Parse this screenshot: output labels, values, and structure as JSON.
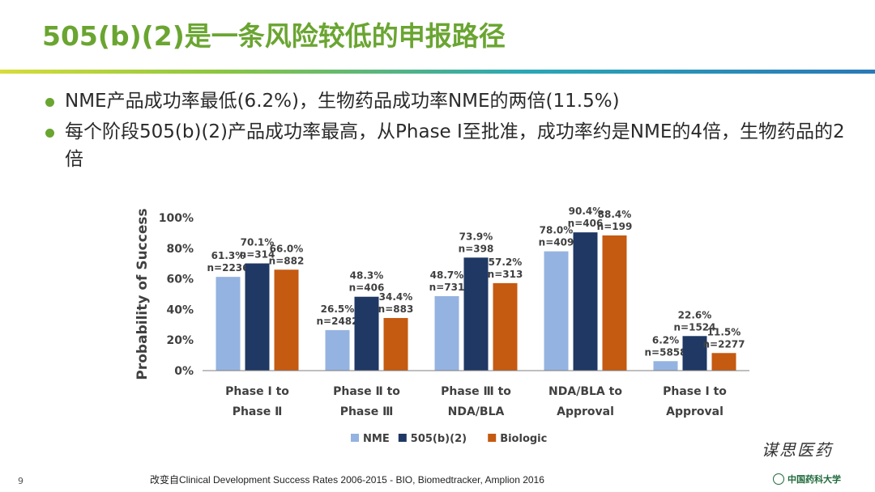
{
  "slide": {
    "title": "505(b)(2)是一条风险较低的申报路径",
    "bullets": [
      "NME产品成功率最低(6.2%)，生物药品成功率NME的两倍(11.5%)",
      "每个阶段505(b)(2)产品成功率最高，从Phase Ⅰ至批准，成功率约是NME的4倍，生物药品的2倍"
    ],
    "page_number": "9",
    "source": "改变自Clinical Development Success Rates 2006-2015 - BIO, Biomedtracker, Amplion 2016",
    "logo_text": "谋思医药",
    "university": "中国药科大学"
  },
  "colors": {
    "title": "#6aa531",
    "nme": "#95b3e0",
    "b2": "#1f3864",
    "biologic": "#c55a11"
  },
  "chart_data": {
    "type": "bar",
    "ylabel": "Probability of Success",
    "ylim": [
      0,
      100
    ],
    "yticks": [
      0,
      20,
      40,
      60,
      80,
      100
    ],
    "ytick_labels": [
      "0%",
      "20%",
      "40%",
      "60%",
      "80%",
      "100%"
    ],
    "categories": [
      [
        "Phase Ⅰ to",
        "Phase Ⅱ"
      ],
      [
        "Phase Ⅱ to",
        "Phase Ⅲ"
      ],
      [
        "Phase Ⅲ to",
        "NDA/BLA"
      ],
      [
        "NDA/BLA to",
        "Approval"
      ],
      [
        "Phase Ⅰ to",
        "Approval"
      ]
    ],
    "series": [
      {
        "name": "NME",
        "color_key": "nme",
        "values": [
          61.3,
          26.5,
          48.7,
          78.0,
          6.2
        ],
        "labels": [
          [
            "61.3%",
            "n=2236"
          ],
          [
            "26.5%",
            "n=2482"
          ],
          [
            "48.7%",
            "n=731"
          ],
          [
            "78.0%",
            "n=409"
          ],
          [
            "6.2%",
            "n=5858"
          ]
        ]
      },
      {
        "name": "505(b)(2)",
        "color_key": "b2",
        "values": [
          70.1,
          48.3,
          73.9,
          90.4,
          22.6
        ],
        "labels": [
          [
            "70.1%",
            "n=314"
          ],
          [
            "48.3%",
            "n=406"
          ],
          [
            "73.9%",
            "n=398"
          ],
          [
            "90.4%",
            "n=406"
          ],
          [
            "22.6%",
            "n=1524"
          ]
        ]
      },
      {
        "name": "Biologic",
        "color_key": "biologic",
        "values": [
          66.0,
          34.4,
          57.2,
          88.4,
          11.5
        ],
        "labels": [
          [
            "66.0%",
            "n=882"
          ],
          [
            "34.4%",
            "n=883"
          ],
          [
            "57.2%",
            "n=313"
          ],
          [
            "88.4%",
            "n=199"
          ],
          [
            "11.5%",
            "n=2277"
          ]
        ]
      }
    ],
    "legend_position": "bottom"
  }
}
